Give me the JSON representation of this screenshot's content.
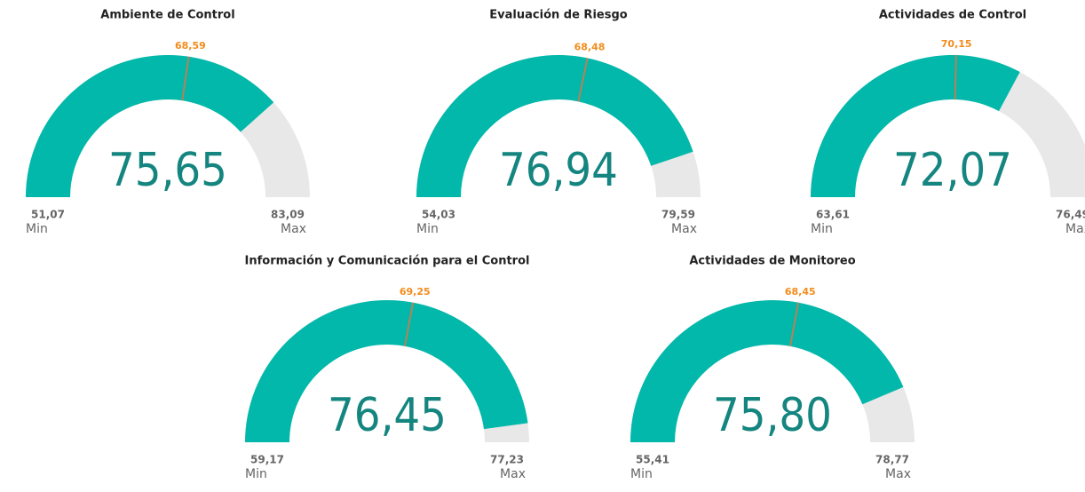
{
  "chart_data": [
    {
      "type": "gauge",
      "title": "Ambiente de Control",
      "values": [
        75.65
      ],
      "value_labels": [
        "75,65"
      ],
      "ylim": [
        51.07,
        83.09
      ],
      "yticks": [
        {
          "value": 51.07,
          "label": "51,07"
        },
        {
          "value": 83.09,
          "label": "83,09"
        }
      ],
      "target": 68.59,
      "target_label": "68,59",
      "min_label": "Min",
      "max_label": "Max",
      "color": "#01B8AA"
    },
    {
      "type": "gauge",
      "title": "Evaluación de Riesgo",
      "values": [
        76.94
      ],
      "value_labels": [
        "76,94"
      ],
      "ylim": [
        54.03,
        79.59
      ],
      "yticks": [
        {
          "value": 54.03,
          "label": "54,03"
        },
        {
          "value": 79.59,
          "label": "79,59"
        }
      ],
      "target": 68.48,
      "target_label": "68,48",
      "min_label": "Min",
      "max_label": "Max",
      "color": "#01B8AA"
    },
    {
      "type": "gauge",
      "title": "Actividades de Control",
      "values": [
        72.07
      ],
      "value_labels": [
        "72,07"
      ],
      "ylim": [
        63.61,
        76.49
      ],
      "yticks": [
        {
          "value": 63.61,
          "label": "63,61"
        },
        {
          "value": 76.49,
          "label": "76,49"
        }
      ],
      "target": 70.15,
      "target_label": "70,15",
      "min_label": "Min",
      "max_label": "Max",
      "color": "#01B8AA"
    },
    {
      "type": "gauge",
      "title": "Información y Comunicación para el Control",
      "values": [
        76.45
      ],
      "value_labels": [
        "76,45"
      ],
      "ylim": [
        59.17,
        77.23
      ],
      "yticks": [
        {
          "value": 59.17,
          "label": "59,17"
        },
        {
          "value": 77.23,
          "label": "77,23"
        }
      ],
      "target": 69.25,
      "target_label": "69,25",
      "min_label": "Min",
      "max_label": "Max",
      "color": "#01B8AA"
    },
    {
      "type": "gauge",
      "title": "Actividades de Monitoreo",
      "values": [
        75.8
      ],
      "value_labels": [
        "75,80"
      ],
      "ylim": [
        55.41,
        78.77
      ],
      "yticks": [
        {
          "value": 55.41,
          "label": "55,41"
        },
        {
          "value": 78.77,
          "label": "78,77"
        }
      ],
      "target": 68.45,
      "target_label": "68,45",
      "min_label": "Min",
      "max_label": "Max",
      "color": "#01B8AA"
    }
  ]
}
